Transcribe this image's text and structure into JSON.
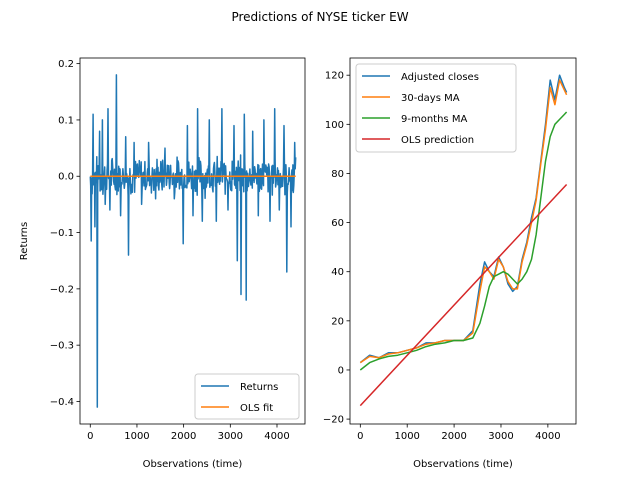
{
  "figure": {
    "title": "Predictions of NYSE ticker EW"
  },
  "chart_data": [
    {
      "type": "line",
      "panel": "left",
      "xlabel": "Observations (time)",
      "ylabel": "Returns",
      "xlim": [
        -220,
        4600
      ],
      "ylim": [
        -0.44,
        0.21
      ],
      "xticks": [
        0,
        1000,
        2000,
        3000,
        4000
      ],
      "xtick_labels": [
        "0",
        "1000",
        "2000",
        "3000",
        "4000"
      ],
      "yticks": [
        -0.4,
        -0.3,
        -0.2,
        -0.1,
        0.0,
        0.1,
        0.2
      ],
      "ytick_labels": [
        "−0.4",
        "−0.3",
        "−0.2",
        "−0.1",
        "0.0",
        "0.1",
        "0.2"
      ],
      "legend_position": "lower right",
      "series": [
        {
          "name": "Returns",
          "color": "#1f77b4",
          "x_range": [
            0,
            4400
          ],
          "typical_band": [
            -0.04,
            0.04
          ],
          "spikes": [
            {
              "x": 20,
              "y": -0.115
            },
            {
              "x": 60,
              "y": 0.11
            },
            {
              "x": 100,
              "y": -0.09
            },
            {
              "x": 150,
              "y": -0.41
            },
            {
              "x": 200,
              "y": 0.08
            },
            {
              "x": 260,
              "y": 0.1
            },
            {
              "x": 320,
              "y": -0.05
            },
            {
              "x": 380,
              "y": 0.12
            },
            {
              "x": 420,
              "y": -0.06
            },
            {
              "x": 560,
              "y": 0.18
            },
            {
              "x": 650,
              "y": -0.07
            },
            {
              "x": 760,
              "y": 0.07
            },
            {
              "x": 820,
              "y": -0.14
            },
            {
              "x": 940,
              "y": 0.06
            },
            {
              "x": 1100,
              "y": -0.05
            },
            {
              "x": 1250,
              "y": 0.06
            },
            {
              "x": 1400,
              "y": -0.04
            },
            {
              "x": 1600,
              "y": 0.05
            },
            {
              "x": 1800,
              "y": -0.04
            },
            {
              "x": 1990,
              "y": -0.12
            },
            {
              "x": 2080,
              "y": 0.09
            },
            {
              "x": 2200,
              "y": -0.07
            },
            {
              "x": 2300,
              "y": 0.12
            },
            {
              "x": 2400,
              "y": -0.08
            },
            {
              "x": 2550,
              "y": 0.1
            },
            {
              "x": 2700,
              "y": -0.08
            },
            {
              "x": 2820,
              "y": 0.12
            },
            {
              "x": 2950,
              "y": -0.06
            },
            {
              "x": 3080,
              "y": 0.09
            },
            {
              "x": 3150,
              "y": -0.15
            },
            {
              "x": 3230,
              "y": -0.21
            },
            {
              "x": 3300,
              "y": 0.11
            },
            {
              "x": 3340,
              "y": -0.22
            },
            {
              "x": 3480,
              "y": 0.08
            },
            {
              "x": 3600,
              "y": -0.07
            },
            {
              "x": 3720,
              "y": 0.1
            },
            {
              "x": 3850,
              "y": -0.08
            },
            {
              "x": 3950,
              "y": 0.12
            },
            {
              "x": 4050,
              "y": -0.06
            },
            {
              "x": 4150,
              "y": 0.09
            },
            {
              "x": 4210,
              "y": -0.17
            },
            {
              "x": 4300,
              "y": -0.09
            },
            {
              "x": 4380,
              "y": 0.06
            }
          ]
        },
        {
          "name": "OLS fit",
          "color": "#ff7f0e",
          "x": [
            0,
            4400
          ],
          "y": [
            0.0,
            0.0
          ]
        }
      ]
    },
    {
      "type": "line",
      "panel": "right",
      "xlabel": "Observations (time)",
      "ylabel": "",
      "xlim": [
        -220,
        4600
      ],
      "ylim": [
        -22,
        127
      ],
      "xticks": [
        0,
        1000,
        2000,
        3000,
        4000
      ],
      "xtick_labels": [
        "0",
        "1000",
        "2000",
        "3000",
        "4000"
      ],
      "yticks": [
        -20,
        0,
        20,
        40,
        60,
        80,
        100,
        120
      ],
      "ytick_labels": [
        "−20",
        "0",
        "20",
        "40",
        "60",
        "80",
        "100",
        "120"
      ],
      "legend_position": "upper left",
      "series": [
        {
          "name": "Adjusted closes",
          "color": "#1f77b4",
          "x": [
            0,
            200,
            400,
            600,
            800,
            1000,
            1200,
            1400,
            1600,
            1800,
            2000,
            2200,
            2400,
            2550,
            2650,
            2750,
            2850,
            2950,
            3050,
            3150,
            3250,
            3350,
            3450,
            3550,
            3650,
            3750,
            3850,
            3950,
            4050,
            4150,
            4250,
            4350,
            4400
          ],
          "y": [
            3,
            6,
            5,
            7,
            7,
            8,
            9,
            11,
            11,
            12,
            12,
            12,
            16,
            35,
            44,
            40,
            38,
            46,
            42,
            35,
            32,
            34,
            45,
            52,
            62,
            70,
            85,
            100,
            118,
            110,
            120,
            115,
            113
          ]
        },
        {
          "name": "30-days MA",
          "color": "#ff7f0e",
          "x": [
            0,
            200,
            400,
            600,
            800,
            1000,
            1200,
            1400,
            1600,
            1800,
            2000,
            2200,
            2400,
            2550,
            2650,
            2750,
            2850,
            2950,
            3050,
            3150,
            3250,
            3350,
            3450,
            3550,
            3650,
            3750,
            3850,
            3950,
            4050,
            4150,
            4250,
            4350,
            4400
          ],
          "y": [
            3,
            5.5,
            5,
            6.5,
            7,
            8,
            9,
            10.5,
            11,
            12,
            12,
            12,
            15,
            32,
            42,
            40,
            37,
            45,
            42,
            36,
            33,
            33,
            44,
            51,
            60,
            69,
            84,
            98,
            115,
            108,
            118,
            114,
            112
          ]
        },
        {
          "name": "9-months MA",
          "color": "#2ca02c",
          "x": [
            0,
            200,
            400,
            600,
            800,
            1000,
            1200,
            1400,
            1600,
            1800,
            2000,
            2200,
            2400,
            2550,
            2650,
            2750,
            2850,
            2950,
            3050,
            3150,
            3250,
            3350,
            3450,
            3550,
            3650,
            3750,
            3850,
            3950,
            4050,
            4150,
            4250,
            4350,
            4400
          ],
          "y": [
            0,
            3,
            4.5,
            5.5,
            6,
            7,
            8,
            9.5,
            10.5,
            11,
            12,
            12,
            13,
            19,
            26,
            34,
            38,
            39,
            40,
            39,
            37,
            35,
            37,
            40,
            45,
            55,
            70,
            85,
            95,
            100,
            102,
            104,
            105
          ]
        },
        {
          "name": "OLS prediction",
          "color": "#d62728",
          "x": [
            0,
            4400
          ],
          "y": [
            -14.5,
            75.5
          ]
        }
      ]
    }
  ]
}
